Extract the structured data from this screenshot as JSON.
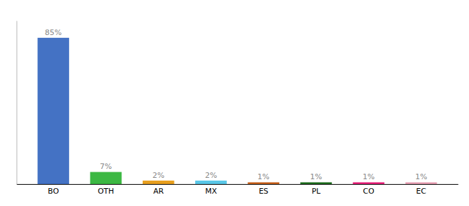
{
  "chart_data": {
    "type": "bar",
    "categories": [
      "BO",
      "OTH",
      "AR",
      "MX",
      "ES",
      "PL",
      "CO",
      "EC"
    ],
    "values": [
      85,
      7,
      2,
      2,
      1,
      1,
      1,
      1
    ],
    "value_labels": [
      "85%",
      "7%",
      "2%",
      "2%",
      "1%",
      "1%",
      "1%",
      "1%"
    ],
    "data_labels": true,
    "colors": [
      "#4472c4",
      "#3cb843",
      "#e8a020",
      "#5bc8e8",
      "#c8601a",
      "#1e6e1e",
      "#e8207a",
      "#e8a0b4"
    ],
    "ylim": [
      0,
      95
    ],
    "grid": false,
    "tick_labels": "x"
  }
}
